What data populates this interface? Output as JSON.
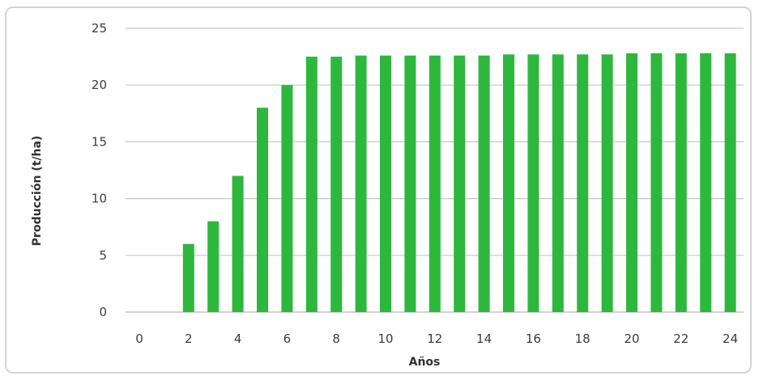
{
  "chart_data": {
    "type": "bar",
    "title": "",
    "xlabel": "Años",
    "ylabel": "Producción (t/ha)",
    "ylim": [
      0,
      25
    ],
    "yticks": [
      "0",
      "5",
      "10",
      "15",
      "20",
      "25"
    ],
    "xtick_labels": [
      "0",
      "2",
      "4",
      "6",
      "8",
      "10",
      "12",
      "14",
      "16",
      "18",
      "20",
      "22",
      "24"
    ],
    "categories": [
      0,
      1,
      2,
      3,
      4,
      5,
      6,
      7,
      8,
      9,
      10,
      11,
      12,
      13,
      14,
      15,
      16,
      17,
      18,
      19,
      20,
      21,
      22,
      23,
      24
    ],
    "values": [
      0,
      0,
      6,
      8,
      12,
      18,
      20,
      22.5,
      22.5,
      22.6,
      22.6,
      22.6,
      22.6,
      22.6,
      22.6,
      22.7,
      22.7,
      22.7,
      22.7,
      22.7,
      22.8,
      22.8,
      22.8,
      22.8,
      22.8
    ],
    "grid": true,
    "bar_color": "#2db83d"
  }
}
